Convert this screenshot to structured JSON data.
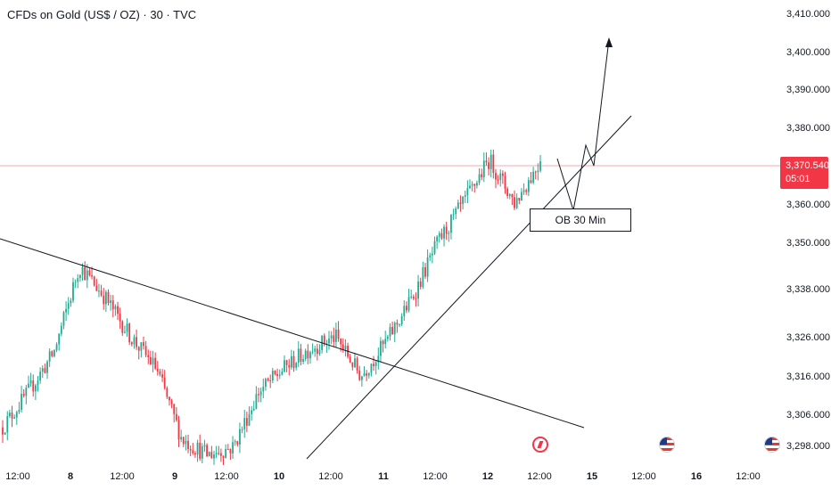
{
  "header": {
    "title": "CFDs on Gold (US$ / OZ) · 30 · TVC"
  },
  "colors": {
    "up": "#22ab94",
    "down": "#f23645",
    "background": "#ffffff",
    "text": "#131722",
    "last_price_line": "#f7a9ae"
  },
  "price_axis": {
    "ticks": [
      "3,410.000",
      "3,400.000",
      "3,390.000",
      "3,380.000",
      "3,360.000",
      "3,350.000",
      "3,338.000",
      "3,326.000",
      "3,316.000",
      "3,306.000",
      "3,298.000"
    ]
  },
  "time_axis": {
    "ticks": [
      {
        "label": "12:00",
        "bold": false
      },
      {
        "label": "8",
        "bold": true
      },
      {
        "label": "12:00",
        "bold": false
      },
      {
        "label": "9",
        "bold": true
      },
      {
        "label": "12:00",
        "bold": false
      },
      {
        "label": "10",
        "bold": true
      },
      {
        "label": "12:00",
        "bold": false
      },
      {
        "label": "11",
        "bold": true
      },
      {
        "label": "12:00",
        "bold": false
      },
      {
        "label": "12",
        "bold": true
      },
      {
        "label": "12:00",
        "bold": false
      },
      {
        "label": "15",
        "bold": true
      },
      {
        "label": "12:00",
        "bold": false
      },
      {
        "label": "16",
        "bold": true
      },
      {
        "label": "12:00",
        "bold": false
      }
    ]
  },
  "last_price": {
    "price": "3,370.540",
    "countdown": "05:01"
  },
  "annotation": {
    "label": "OB 30 Min"
  },
  "events": [
    "flash-icon",
    "us-flag-icon",
    "us-flag-icon"
  ],
  "chart_data": {
    "type": "candlestick",
    "symbol": "CFDs on Gold (US$ / OZ)",
    "interval": "30",
    "source": "TVC",
    "x": [
      "12:00",
      "8",
      "12:00",
      "9",
      "12:00",
      "10",
      "12:00",
      "11",
      "12:00",
      "12",
      "12:00",
      "15",
      "12:00",
      "16",
      "12:00"
    ],
    "last_price": 3370.54,
    "path_points": [
      {
        "session": "7 12:00",
        "price": 3303
      },
      {
        "session": "7 18:00",
        "price": 3312
      },
      {
        "session": "8 00:00",
        "price": 3322
      },
      {
        "session": "8 06:00",
        "price": 3344
      },
      {
        "session": "8 12:00",
        "price": 3336
      },
      {
        "session": "8 18:00",
        "price": 3326
      },
      {
        "session": "9 00:00",
        "price": 3318
      },
      {
        "session": "9 06:00",
        "price": 3300
      },
      {
        "session": "9 12:00",
        "price": 3296
      },
      {
        "session": "9 18:00",
        "price": 3298
      },
      {
        "session": "10 00:00",
        "price": 3312
      },
      {
        "session": "10 06:00",
        "price": 3318
      },
      {
        "session": "10 12:00",
        "price": 3323
      },
      {
        "session": "10 18:00",
        "price": 3326
      },
      {
        "session": "11 00:00",
        "price": 3316
      },
      {
        "session": "11 06:00",
        "price": 3325
      },
      {
        "session": "11 12:00",
        "price": 3336
      },
      {
        "session": "11 18:00",
        "price": 3350
      },
      {
        "session": "12 00:00",
        "price": 3360
      },
      {
        "session": "12 06:00",
        "price": 3371
      },
      {
        "session": "12 09:00",
        "price": 3360
      },
      {
        "session": "12 12:00",
        "price": 3370.54
      }
    ],
    "drawings": [
      {
        "type": "trendline",
        "name": "descending-trendline"
      },
      {
        "type": "trendline",
        "name": "ascending-trendline"
      },
      {
        "type": "rectangle",
        "label": "OB 30 Min"
      },
      {
        "type": "path-arrow",
        "name": "projected-path"
      }
    ],
    "grid": false,
    "legend": "none"
  }
}
